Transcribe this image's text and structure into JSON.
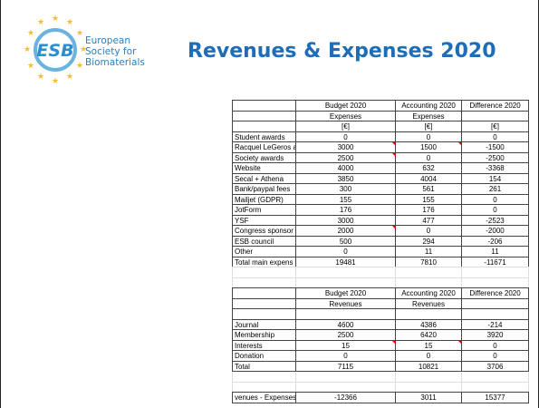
{
  "logo": {
    "initials": "ESB",
    "text": [
      "European",
      "Society for",
      "Biomaterials"
    ]
  },
  "title": "Revenues & Expenses 2020",
  "expenses": {
    "header": [
      "Budget 2020",
      "Accounting 2020",
      "Difference 2020"
    ],
    "subheader": [
      "Expenses",
      "Expenses"
    ],
    "units": [
      "[€]",
      "[€]",
      "[€]"
    ],
    "rows": [
      [
        "Student awards",
        0,
        0,
        0
      ],
      [
        "Racquel LeGeros a",
        3000,
        1500,
        -1500
      ],
      [
        "Society awards",
        2500,
        0,
        -2500
      ],
      [
        "Website",
        4000,
        632,
        -3368
      ],
      [
        "Secal + Athena",
        3850,
        4004,
        154
      ],
      [
        "Bank/paypal fees",
        300,
        561,
        261
      ],
      [
        "Mailjet (GDPR)",
        155,
        155,
        0
      ],
      [
        "JotForm",
        176,
        176,
        0
      ],
      [
        "YSF",
        3000,
        477,
        -2523
      ],
      [
        "Congress sponsor",
        2000,
        0,
        -2000
      ],
      [
        "ESB council",
        500,
        294,
        -206
      ],
      [
        "Other",
        0,
        11,
        11
      ],
      [
        "Total main expens",
        19481,
        7810,
        -11671
      ]
    ]
  },
  "revenues": {
    "header": [
      "Budget 2020",
      "Accounting 2020",
      "Difference 2020"
    ],
    "subheader": [
      "Revenues",
      "Revenues"
    ],
    "rows": [
      [
        "Journal",
        4600,
        4386,
        -214
      ],
      [
        "Membership",
        2500,
        6420,
        3920
      ],
      [
        "Interests",
        15,
        15,
        0
      ],
      [
        "Donation",
        0,
        0,
        0
      ],
      [
        "Total",
        7115,
        10821,
        3706
      ]
    ]
  },
  "balance": [
    "venues - Expenses",
    -12366,
    3011,
    15377
  ]
}
